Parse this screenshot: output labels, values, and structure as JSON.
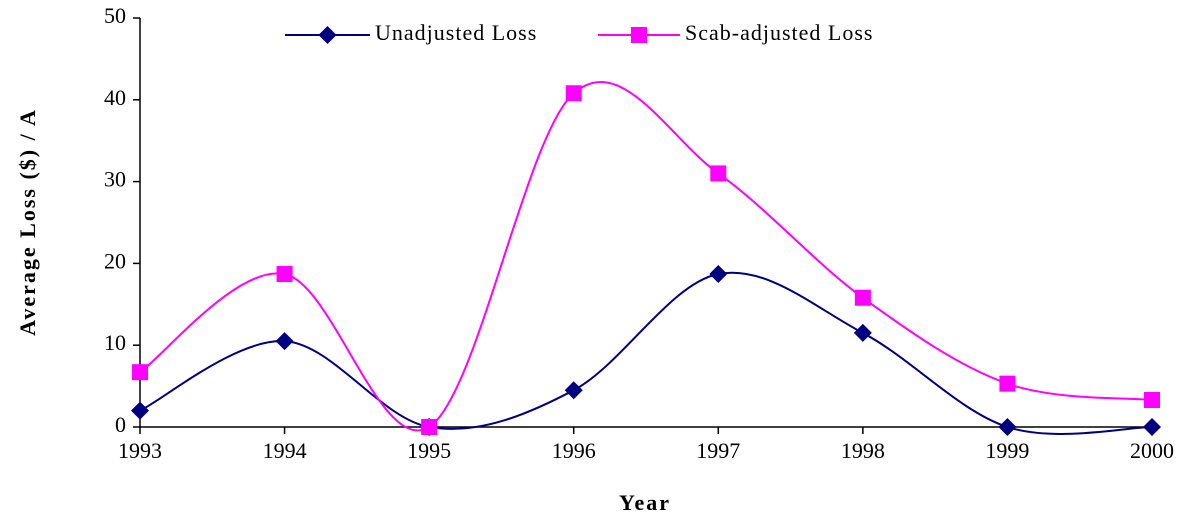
{
  "chart_data": {
    "type": "line",
    "x_label": "Year",
    "y_label": "Average Loss ($) / A",
    "categories": [
      "1993",
      "1994",
      "1995",
      "1996",
      "1997",
      "1998",
      "1999",
      "2000"
    ],
    "series": [
      {
        "name": "Unadjusted Loss",
        "color": "#000080",
        "marker": "diamond",
        "values": [
          2,
          10.5,
          0,
          4.5,
          18.7,
          11.5,
          0,
          0
        ]
      },
      {
        "name": "Scab-adjusted Loss",
        "color": "#ff00ff",
        "marker": "square",
        "values": [
          6.7,
          18.7,
          0,
          40.8,
          31,
          15.8,
          5.3,
          3.3
        ]
      }
    ],
    "ylim": [
      0,
      50
    ],
    "yticks": [
      0,
      10,
      20,
      30,
      40,
      50
    ],
    "legend": "top"
  }
}
